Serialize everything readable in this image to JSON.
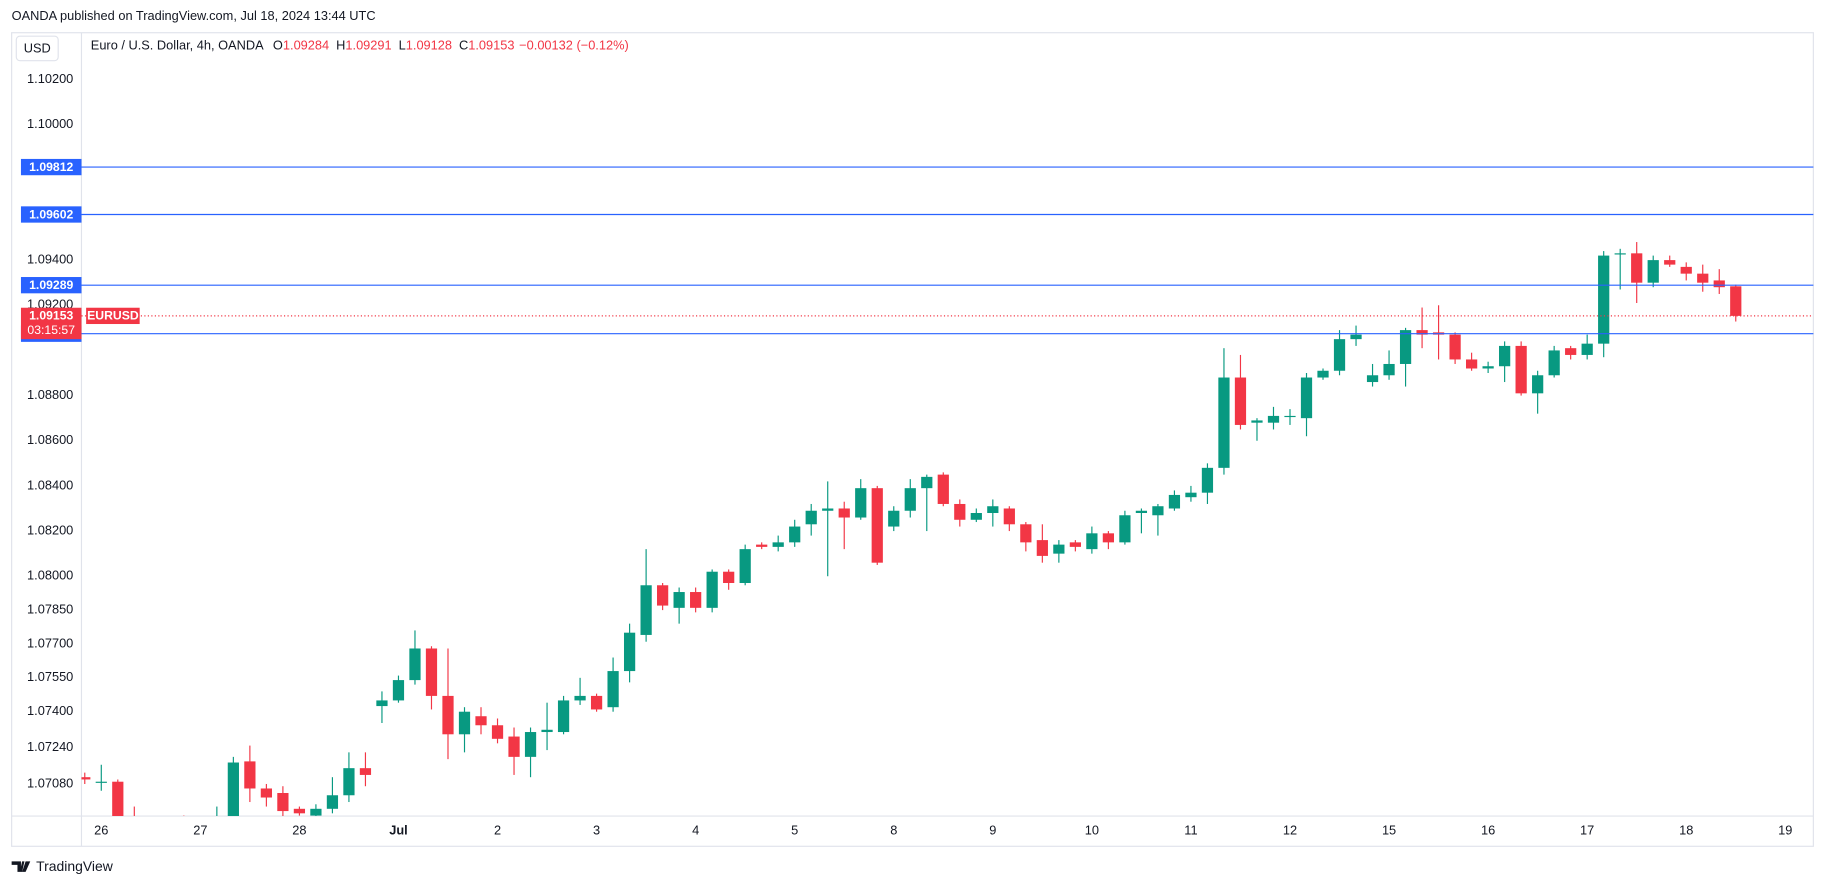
{
  "chart_data": {
    "type": "candlestick",
    "title": "OANDA published on TradingView.com, Jul 18, 2024 13:44 UTC",
    "currency": "USD",
    "symbol": "Euro / U.S. Dollar, 4h, OANDA",
    "ohlc_labels": [
      "O",
      "H",
      "L",
      "C"
    ],
    "change": "−0.00132 (−0.12%)",
    "ticker": "EURUSD",
    "countdown": "03:15:57",
    "brand": "TradingView",
    "up_color": "#089981",
    "down_color": "#f23645",
    "level_color": "#2962ff",
    "levels": [
      1.09812,
      1.09602,
      1.09289,
      1.09074
    ],
    "open": [
      1.0711,
      1.0709,
      1.0709,
      1.069,
      1.0688,
      1.0686,
      1.069,
      1.0688,
      1.0691,
      1.0693,
      1.0718,
      1.0706,
      1.0704,
      1.0697,
      1.0694,
      1.0697,
      1.0703,
      1.0715,
      1.07425,
      1.0745,
      1.0754,
      1.0768,
      1.0747,
      1.073,
      1.0738,
      1.0734,
      1.0729,
      1.072,
      1.0731,
      1.0731,
      1.0745,
      1.0747,
      1.0742,
      1.0758,
      1.0774,
      1.0796,
      1.0786,
      1.0793,
      1.0786,
      1.0802,
      1.0797,
      1.0814,
      1.0813,
      1.0815,
      1.0823,
      1.0829,
      1.083,
      1.0826,
      1.0839,
      1.0822,
      1.0829,
      1.0839,
      1.0845,
      1.0832,
      1.0825,
      1.0828,
      1.083,
      1.0823,
      1.0816,
      1.081,
      1.0815,
      1.0812,
      1.0819,
      1.0815,
      1.0828,
      1.0827,
      1.083,
      1.0835,
      1.0837,
      1.0848,
      1.0888,
      1.0868,
      1.0868,
      1.0871,
      1.087,
      1.0888,
      1.0891,
      1.0905,
      1.0886,
      1.0889,
      1.0894,
      1.0909,
      1.0908,
      1.0907,
      1.0896,
      1.0892,
      1.0893,
      1.0902,
      1.0881,
      1.0889,
      1.0901,
      1.0898,
      1.0903,
      1.0943,
      1.0943,
      1.093,
      1.094,
      1.0937,
      1.0934,
      1.0931,
      1.09284
    ],
    "high": [
      1.0713,
      1.07165,
      1.071,
      1.0698,
      1.0692,
      1.0693,
      1.0694,
      1.0693,
      1.0698,
      1.072,
      1.0725,
      1.0708,
      1.0707,
      1.0698,
      1.0699,
      1.0711,
      1.0722,
      1.0722,
      1.0749,
      1.0756,
      1.0776,
      1.0769,
      1.0768,
      1.0742,
      1.0742,
      1.0737,
      1.0733,
      1.0733,
      1.0744,
      1.0747,
      1.0755,
      1.0748,
      1.0764,
      1.0779,
      1.0812,
      1.0797,
      1.0795,
      1.0795,
      1.0803,
      1.0803,
      1.0814,
      1.0815,
      1.0818,
      1.0825,
      1.0832,
      1.0842,
      1.0833,
      1.0843,
      1.084,
      1.0831,
      1.0843,
      1.0845,
      1.0846,
      1.0834,
      1.083,
      1.0834,
      1.0831,
      1.0824,
      1.0823,
      1.0816,
      1.0816,
      1.0822,
      1.082,
      1.0829,
      1.083,
      1.0832,
      1.0838,
      1.084,
      1.085,
      1.0901,
      1.0898,
      1.087,
      1.0875,
      1.0874,
      1.089,
      1.0892,
      1.0909,
      1.0911,
      1.0894,
      1.09,
      1.091,
      1.0919,
      1.092,
      1.0908,
      1.0899,
      1.0895,
      1.0904,
      1.0904,
      1.0891,
      1.0902,
      1.0902,
      1.0907,
      1.0944,
      1.0945,
      1.0948,
      1.0942,
      1.0942,
      1.0939,
      1.0938,
      1.0936,
      1.09291
    ],
    "low": [
      1.0708,
      1.0705,
      1.069,
      1.0685,
      1.0682,
      1.068,
      1.0684,
      1.0683,
      1.0686,
      1.069,
      1.07,
      1.0698,
      1.0693,
      1.0694,
      1.0693,
      1.0695,
      1.07,
      1.0707,
      1.0735,
      1.0744,
      1.0752,
      1.0741,
      1.0719,
      1.0722,
      1.073,
      1.0726,
      1.0712,
      1.0711,
      1.0723,
      1.073,
      1.0743,
      1.074,
      1.074,
      1.0753,
      1.0771,
      1.0785,
      1.0779,
      1.0784,
      1.0784,
      1.0794,
      1.0796,
      1.0812,
      1.0811,
      1.0813,
      1.0818,
      1.08,
      1.0812,
      1.0825,
      1.0805,
      1.082,
      1.0826,
      1.082,
      1.0831,
      1.0822,
      1.0824,
      1.0822,
      1.082,
      1.0811,
      1.0806,
      1.0806,
      1.0811,
      1.081,
      1.0812,
      1.0814,
      1.0819,
      1.0818,
      1.0829,
      1.0833,
      1.0832,
      1.0845,
      1.0865,
      1.086,
      1.0865,
      1.0867,
      1.0862,
      1.0887,
      1.0889,
      1.0902,
      1.0884,
      1.0887,
      1.0884,
      1.0901,
      1.0896,
      1.0894,
      1.0891,
      1.089,
      1.0886,
      1.088,
      1.0872,
      1.0888,
      1.0896,
      1.0896,
      1.0897,
      1.0927,
      1.0921,
      1.0928,
      1.0937,
      1.0931,
      1.0926,
      1.0925,
      1.09128
    ],
    "close": [
      1.071,
      1.0709,
      1.0693,
      1.0688,
      1.0686,
      1.069,
      1.0688,
      1.0691,
      1.0693,
      1.07175,
      1.0706,
      1.0702,
      1.0696,
      1.0695,
      1.0697,
      1.0703,
      1.0715,
      1.0712,
      1.0745,
      1.0754,
      1.0768,
      1.0747,
      1.073,
      1.074,
      1.0734,
      1.0728,
      1.072,
      1.0731,
      1.0732,
      1.0745,
      1.0747,
      1.0741,
      1.0758,
      1.0775,
      1.0796,
      1.0787,
      1.0793,
      1.0786,
      1.0802,
      1.0797,
      1.0812,
      1.0813,
      1.0815,
      1.0822,
      1.0829,
      1.083,
      1.0826,
      1.0839,
      1.0806,
      1.0829,
      1.0839,
      1.0844,
      1.0832,
      1.0825,
      1.0828,
      1.0831,
      1.0823,
      1.0815,
      1.0809,
      1.0814,
      1.0813,
      1.0819,
      1.0815,
      1.0827,
      1.0829,
      1.0831,
      1.0836,
      1.0837,
      1.0848,
      1.0888,
      1.0867,
      1.0869,
      1.0871,
      1.0871,
      1.0888,
      1.0891,
      1.0905,
      1.0907,
      1.0889,
      1.0894,
      1.0909,
      1.0907,
      1.0907,
      1.0896,
      1.0892,
      1.0893,
      1.0902,
      1.0881,
      1.0889,
      1.09,
      1.0898,
      1.0903,
      1.0942,
      1.0943,
      1.093,
      1.094,
      1.0938,
      1.0934,
      1.093,
      1.0928,
      1.09153
    ],
    "xlim": [
      -0.2,
      104.7
    ],
    "xticks": [
      {
        "value": 1,
        "label": "26"
      },
      {
        "value": 7,
        "label": "27"
      },
      {
        "value": 13,
        "label": "28"
      },
      {
        "value": 19,
        "label": "Jul"
      },
      {
        "value": 25,
        "label": "2"
      },
      {
        "value": 31,
        "label": "3"
      },
      {
        "value": 37,
        "label": "4"
      },
      {
        "value": 43,
        "label": "5"
      },
      {
        "value": 49,
        "label": "8"
      },
      {
        "value": 55,
        "label": "9"
      },
      {
        "value": 61,
        "label": "10"
      },
      {
        "value": 67,
        "label": "11"
      },
      {
        "value": 73,
        "label": "12"
      },
      {
        "value": 79,
        "label": "15"
      },
      {
        "value": 85,
        "label": "16"
      },
      {
        "value": 91,
        "label": "17"
      },
      {
        "value": 97,
        "label": "18"
      },
      {
        "value": 103,
        "label": "19"
      }
    ],
    "ylim": [
      1.06938,
      1.10407
    ],
    "yticks": [
      {
        "value": 1.102,
        "label": "1.10200"
      },
      {
        "value": 1.1,
        "label": "1.10000"
      },
      {
        "value": 1.094,
        "label": "1.09400"
      },
      {
        "value": 1.092,
        "label": "1.09200"
      },
      {
        "value": 1.088,
        "label": "1.08800"
      },
      {
        "value": 1.086,
        "label": "1.08600"
      },
      {
        "value": 1.084,
        "label": "1.08400"
      },
      {
        "value": 1.082,
        "label": "1.08200"
      },
      {
        "value": 1.08,
        "label": "1.08000"
      },
      {
        "value": 1.0785,
        "label": "1.07850"
      },
      {
        "value": 1.077,
        "label": "1.07700"
      },
      {
        "value": 1.0755,
        "label": "1.07550"
      },
      {
        "value": 1.074,
        "label": "1.07400"
      },
      {
        "value": 1.0724,
        "label": "1.07240"
      },
      {
        "value": 1.0708,
        "label": "1.07080"
      }
    ],
    "grid": false
  }
}
